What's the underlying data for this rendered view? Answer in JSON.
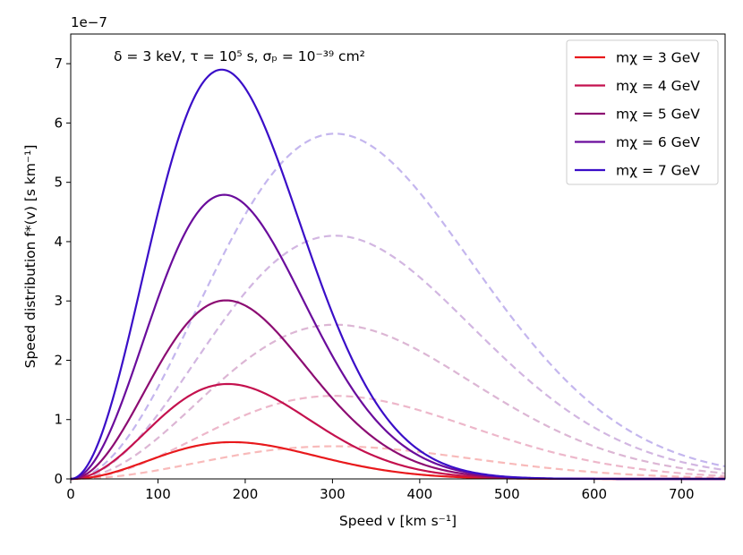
{
  "chart_data": {
    "type": "line",
    "title": "",
    "annotation": "δ = 3 keV, τ = 10⁵ s, σₚ = 10⁻³⁹ cm²",
    "xlabel": "Speed v [km s⁻¹]",
    "ylabel": "Speed distribution f*(v) [s km⁻¹]",
    "y_offset_label": "1e−7",
    "xlim": [
      0,
      750
    ],
    "ylim": [
      0,
      7.5
    ],
    "x_ticks": [
      0,
      100,
      200,
      300,
      400,
      500,
      600,
      700
    ],
    "y_ticks": [
      0,
      1,
      2,
      3,
      4,
      5,
      6,
      7
    ],
    "legend_location": "top-right",
    "series": [
      {
        "name": "mχ = 3 GeV",
        "mass": "3",
        "color": "#e8191c",
        "solid": {
          "peak_x": 185,
          "peak_y": 0.62
        },
        "dashed": {
          "peak_x": 302,
          "peak_y": 0.55
        }
      },
      {
        "name": "mχ = 4 GeV",
        "mass": "4",
        "color": "#c4114e",
        "solid": {
          "peak_x": 180,
          "peak_y": 1.6
        },
        "dashed": {
          "peak_x": 302,
          "peak_y": 1.4
        }
      },
      {
        "name": "mχ = 5 GeV",
        "mass": "5",
        "color": "#8c0c72",
        "solid": {
          "peak_x": 178,
          "peak_y": 3.01
        },
        "dashed": {
          "peak_x": 303,
          "peak_y": 2.6
        }
      },
      {
        "name": "mχ = 6 GeV",
        "mass": "6",
        "color": "#6a0c9c",
        "solid": {
          "peak_x": 176,
          "peak_y": 4.79
        },
        "dashed": {
          "peak_x": 303,
          "peak_y": 4.1
        }
      },
      {
        "name": "mχ = 7 GeV",
        "mass": "7",
        "color": "#3a0ec8",
        "solid": {
          "peak_x": 173,
          "peak_y": 6.9
        },
        "dashed": {
          "peak_x": 303,
          "peak_y": 5.82
        }
      }
    ]
  }
}
